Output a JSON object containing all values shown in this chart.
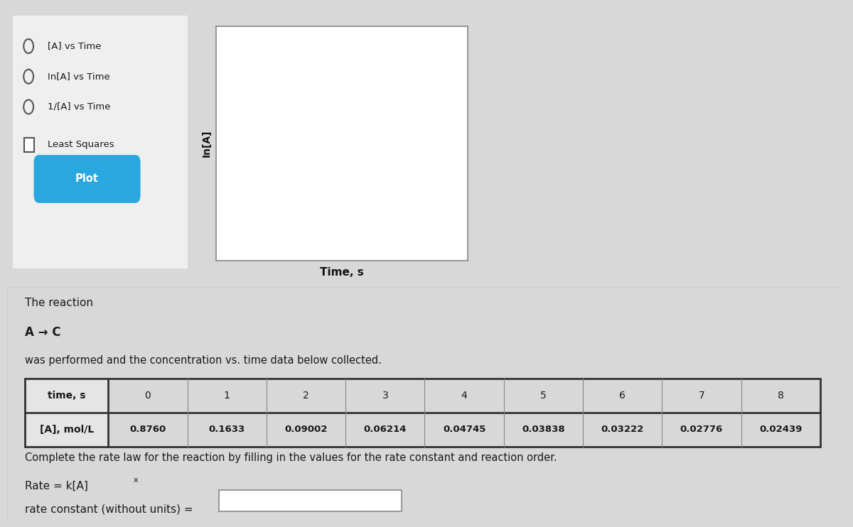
{
  "radio_options": [
    "[A] vs Time",
    "In[A] vs Time",
    "1/[A] vs Time"
  ],
  "checkbox_option": "Least Squares",
  "plot_button_text": "Plot",
  "plot_button_color": "#29a8e0",
  "ylabel": "In[A]",
  "xlabel": "Time, s",
  "reaction_text": "The reaction",
  "reaction_equation": "A → C",
  "description_text": "was performed and the concentration vs. time data below collected.",
  "table_row1": [
    "time, s",
    "0",
    "1",
    "2",
    "3",
    "4",
    "5",
    "6",
    "7",
    "8"
  ],
  "table_row2": [
    "[A], mol/L",
    "0.8760",
    "0.1633",
    "0.09002",
    "0.06214",
    "0.04745",
    "0.03838",
    "0.03222",
    "0.02776",
    "0.02439"
  ],
  "complete_text": "Complete the rate law for the reaction by filling in the values for the rate constant and reaction order.",
  "rate_constant_label": "rate constant (without units) =",
  "bg_color": "#d8d8d8",
  "panel_color": "#efefef",
  "white_color": "#ffffff",
  "border_color": "#bbbbbb",
  "text_color": "#1a1a1a",
  "plot_bg": "#f5f5f5"
}
